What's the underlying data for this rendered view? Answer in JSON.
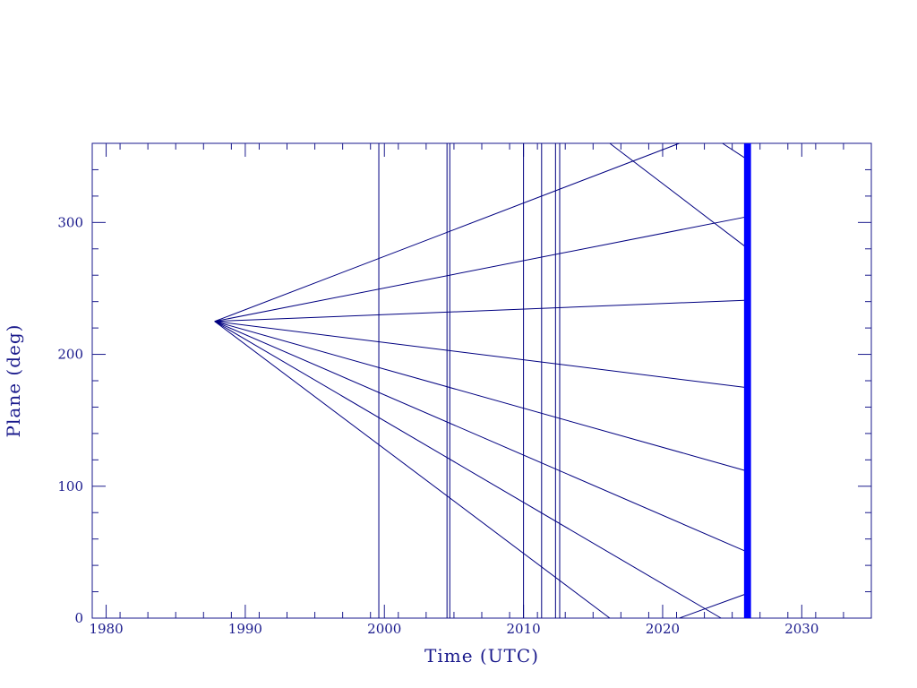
{
  "chart_data": {
    "type": "line",
    "xlabel": "Time (UTC)",
    "ylabel": "Plane (deg)",
    "xlim": [
      1979,
      2035
    ],
    "ylim": [
      0,
      360
    ],
    "x_ticks": [
      1980,
      1990,
      2000,
      2010,
      2020,
      2030
    ],
    "y_ticks": [
      0,
      100,
      200,
      300
    ],
    "grid": false,
    "colors": {
      "axis": "#1a1a8c",
      "lines": "#000080",
      "band": "#0000ff"
    },
    "origin": {
      "x": 1987.8,
      "y": 225
    },
    "series": [
      {
        "x": [
          1987.8,
          2021.2
        ],
        "y": [
          225,
          360
        ]
      },
      {
        "x": [
          1987.8,
          2025.9
        ],
        "y": [
          225,
          304
        ]
      },
      {
        "x": [
          1987.8,
          2025.9
        ],
        "y": [
          225,
          241
        ]
      },
      {
        "x": [
          1987.8,
          2025.9
        ],
        "y": [
          225,
          175
        ]
      },
      {
        "x": [
          1987.8,
          2025.9
        ],
        "y": [
          225,
          112
        ]
      },
      {
        "x": [
          1987.8,
          2025.9
        ],
        "y": [
          225,
          51
        ]
      },
      {
        "x": [
          1987.8,
          2024.2
        ],
        "y": [
          225,
          0
        ]
      },
      {
        "x": [
          1987.8,
          2016.2
        ],
        "y": [
          225,
          0
        ]
      },
      {
        "x": [
          2016.2,
          2025.9
        ],
        "y": [
          360,
          282
        ]
      },
      {
        "x": [
          2024.3,
          2025.9
        ],
        "y": [
          360,
          349
        ]
      },
      {
        "x": [
          2021.2,
          2025.9
        ],
        "y": [
          0,
          18
        ]
      }
    ],
    "vertical_lines": [
      1999.6,
      2004.5,
      2004.7,
      2010.0,
      2011.3,
      2012.3,
      2012.6
    ],
    "band": {
      "x_start": 2025.85,
      "x_end": 2026.35
    }
  }
}
